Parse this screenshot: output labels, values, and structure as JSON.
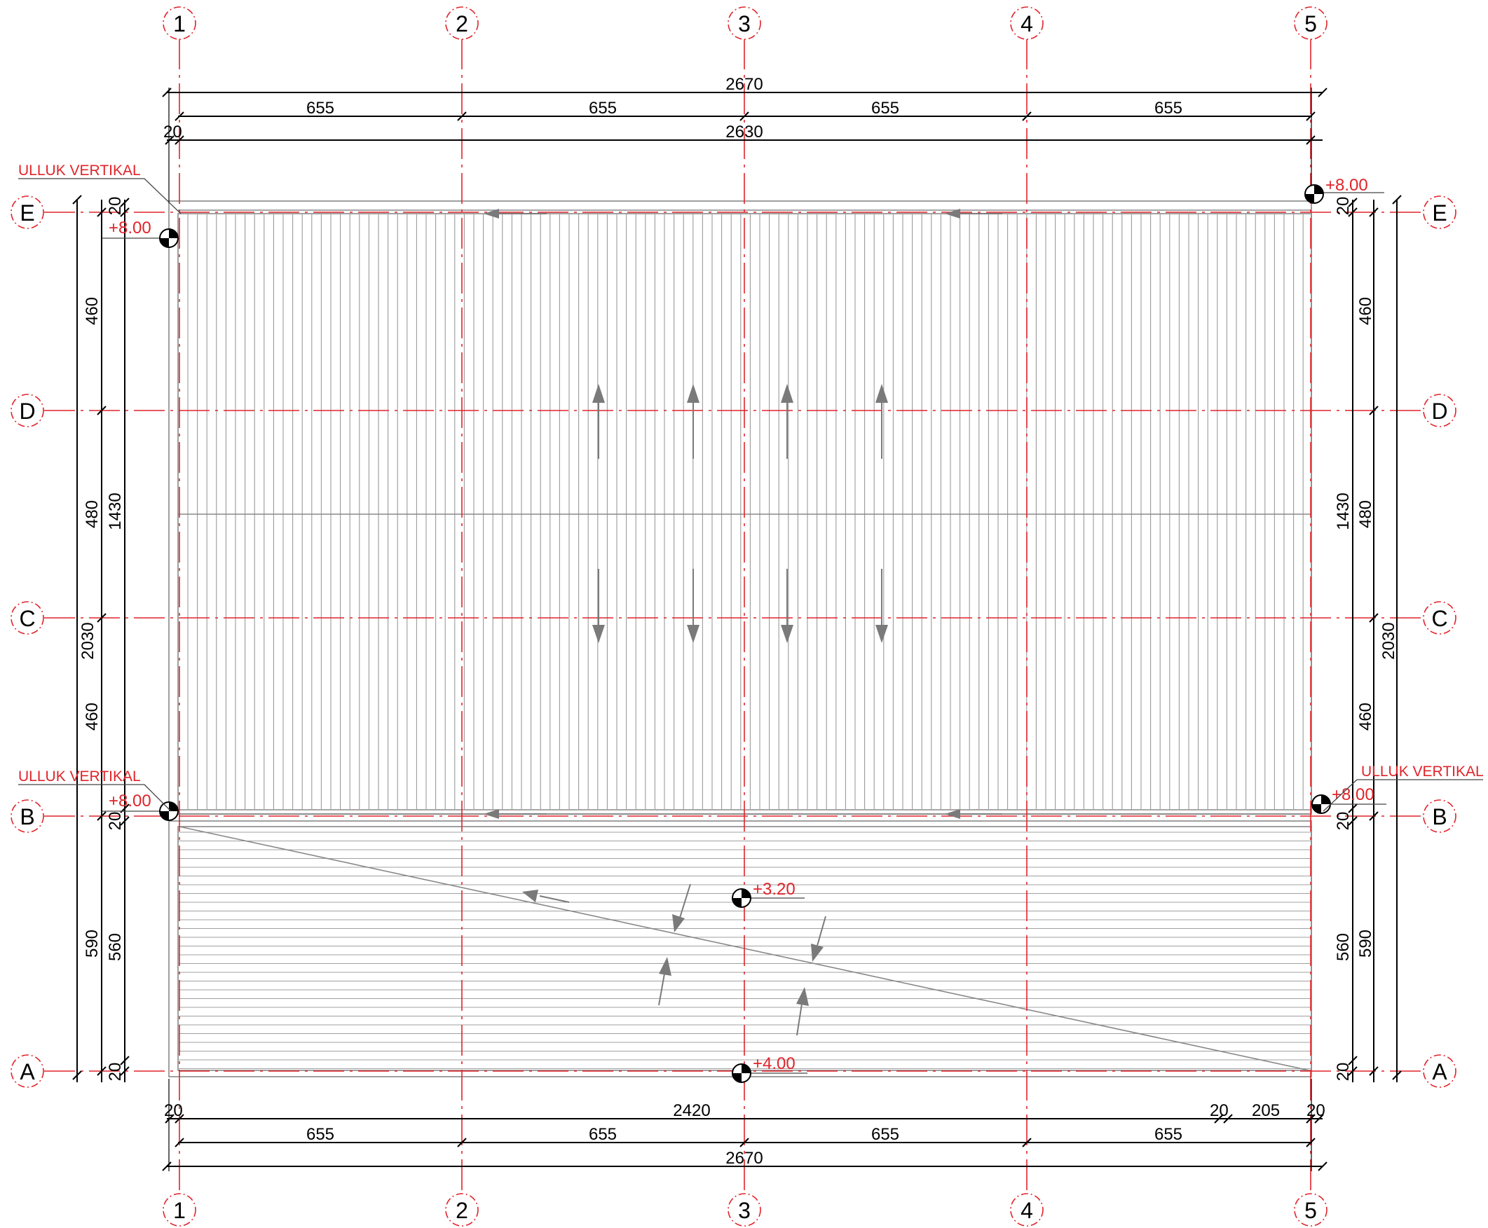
{
  "grid": {
    "columns": [
      "1",
      "2",
      "3",
      "4",
      "5"
    ],
    "rows": [
      "E",
      "D",
      "C",
      "B",
      "A"
    ]
  },
  "dims_top": {
    "overall": "2670",
    "bays": [
      "655",
      "655",
      "655",
      "655"
    ],
    "edge": "20",
    "inner": "2630"
  },
  "dims_bottom": {
    "left_edge": "20",
    "span": "2420",
    "right_edge_1": "20",
    "right_gap": "205",
    "right_edge_2": "20",
    "bays": [
      "655",
      "655",
      "655",
      "655"
    ],
    "overall": "2670"
  },
  "dims_left": {
    "bays": [
      "460",
      "480",
      "460",
      "590"
    ],
    "upper_inner": "1430",
    "lower_inner": "560",
    "overall": "2030",
    "edges": [
      "20",
      "20",
      "20"
    ]
  },
  "dims_right": {
    "bays": [
      "460",
      "480",
      "460",
      "590"
    ],
    "upper_inner": "1430",
    "lower_inner": "560",
    "overall": "2030",
    "edges": [
      "20",
      "20",
      "20"
    ]
  },
  "levels": {
    "top_left": "+8.00",
    "top_right": "+8.00",
    "mid_left": "+8.00",
    "mid_right": "+8.00",
    "lower_center": "+3.20",
    "bottom_center": "+4.00"
  },
  "callouts": {
    "gutter_top_left": "ULLUK VERTIKAL",
    "gutter_mid_left": "ULLUK VERTIKAL",
    "gutter_mid_right": "ULLUK VERTIKAL"
  },
  "colors": {
    "grid": "#e0242a",
    "dimension": "#000000",
    "roof_lines": "#9a9a9a",
    "arrows": "#7a7a7a"
  }
}
